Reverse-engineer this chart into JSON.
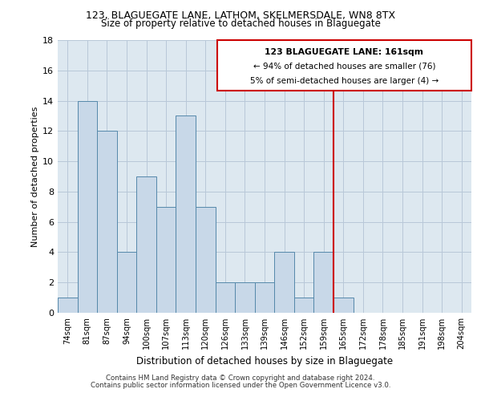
{
  "title1": "123, BLAGUEGATE LANE, LATHOM, SKELMERSDALE, WN8 8TX",
  "title2": "Size of property relative to detached houses in Blaguegate",
  "xlabel": "Distribution of detached houses by size in Blaguegate",
  "ylabel": "Number of detached properties",
  "bins": [
    "74sqm",
    "81sqm",
    "87sqm",
    "94sqm",
    "100sqm",
    "107sqm",
    "113sqm",
    "120sqm",
    "126sqm",
    "133sqm",
    "139sqm",
    "146sqm",
    "152sqm",
    "159sqm",
    "165sqm",
    "172sqm",
    "178sqm",
    "185sqm",
    "191sqm",
    "198sqm",
    "204sqm"
  ],
  "values": [
    1,
    14,
    12,
    4,
    9,
    7,
    13,
    7,
    2,
    2,
    2,
    4,
    1,
    4,
    1,
    0,
    0,
    0,
    0,
    0,
    0
  ],
  "bar_color": "#c8d8e8",
  "bar_edge_color": "#5588aa",
  "background_color": "#dde8f0",
  "grid_color": "#b8c8d8",
  "vline_color": "#cc0000",
  "annotation_title": "123 BLAGUEGATE LANE: 161sqm",
  "annotation_line1": "← 94% of detached houses are smaller (76)",
  "annotation_line2": "5% of semi-detached houses are larger (4) →",
  "annotation_box_color": "#ffffff",
  "annotation_box_edge": "#cc0000",
  "footer1": "Contains HM Land Registry data © Crown copyright and database right 2024.",
  "footer2": "Contains public sector information licensed under the Open Government Licence v3.0.",
  "ylim": [
    0,
    18
  ],
  "yticks": [
    0,
    2,
    4,
    6,
    8,
    10,
    12,
    14,
    16,
    18
  ]
}
